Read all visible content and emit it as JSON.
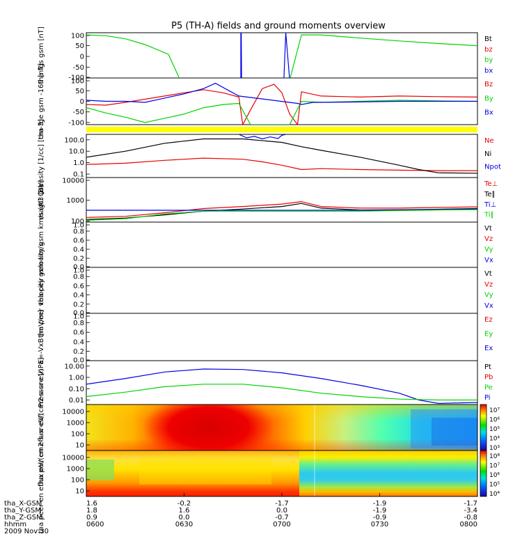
{
  "title": "P5 (TH-A) fields and ground moments overview",
  "colors": {
    "black": "#000000",
    "red": "#e60000",
    "green": "#00d200",
    "blue": "#0000e6",
    "yellow": "#ffff00"
  },
  "chart_data": [
    {
      "type": "line",
      "panel": "fgs",
      "ylabel": "tha fgs gsm [nT]",
      "yticks": [
        "100",
        "50",
        "0",
        "-50",
        "-100"
      ],
      "ylim": [
        -100,
        110
      ],
      "legend": [
        {
          "label": "Bt",
          "color": "#000000"
        },
        {
          "label": "bz",
          "color": "#e60000"
        },
        {
          "label": "by",
          "color": "#00d200"
        },
        {
          "label": "bx",
          "color": "#0000e6"
        }
      ],
      "series": [
        {
          "name": "by",
          "color": "#00d200",
          "x": [
            0.0,
            0.05,
            0.1,
            0.15,
            0.21,
            0.24,
            0.42,
            0.5,
            0.52,
            0.55,
            0.6,
            0.7,
            0.8,
            0.9,
            1.0
          ],
          "y": [
            100,
            96,
            82,
            55,
            10,
            -110,
            -110,
            -110,
            -110,
            100,
            100,
            85,
            72,
            60,
            50
          ]
        },
        {
          "name": "bx",
          "color": "#0000e6",
          "x": [
            0.395,
            0.395,
            0.396,
            0.397,
            0.505,
            0.51,
            0.52
          ],
          "y": [
            -110,
            110,
            110,
            -110,
            -110,
            110,
            -110
          ]
        }
      ]
    },
    {
      "type": "line",
      "panel": "fge",
      "ylabel": "tha fge gsm -169 [nT]",
      "yticks": [
        "100",
        "50",
        "0",
        "-50",
        "-100"
      ],
      "ylim": [
        -110,
        110
      ],
      "legend": [
        {
          "label": "Bz",
          "color": "#e60000"
        },
        {
          "label": "By",
          "color": "#00d200"
        },
        {
          "label": "Bx",
          "color": "#0000e6"
        }
      ],
      "series": [
        {
          "name": "Bz",
          "color": "#e60000",
          "x": [
            0.0,
            0.05,
            0.1,
            0.15,
            0.2,
            0.25,
            0.3,
            0.35,
            0.39,
            0.4,
            0.42,
            0.45,
            0.48,
            0.5,
            0.52,
            0.54,
            0.55,
            0.6,
            0.7,
            0.8,
            0.9,
            1.0
          ],
          "y": [
            -15,
            -18,
            -5,
            10,
            25,
            40,
            55,
            40,
            20,
            -110,
            -40,
            60,
            80,
            40,
            -60,
            -110,
            45,
            25,
            20,
            25,
            22,
            20
          ]
        },
        {
          "name": "By",
          "color": "#00d200",
          "x": [
            0.0,
            0.05,
            0.1,
            0.15,
            0.2,
            0.25,
            0.3,
            0.35,
            0.39,
            0.42,
            0.45,
            0.52,
            0.55,
            0.6,
            0.7,
            0.8,
            0.9,
            1.0
          ],
          "y": [
            -30,
            -55,
            -75,
            -100,
            -80,
            -60,
            -30,
            -15,
            -10,
            -110,
            -110,
            -110,
            0,
            -5,
            0,
            5,
            2,
            0
          ]
        },
        {
          "name": "Bx",
          "color": "#0000e6",
          "x": [
            0.0,
            0.05,
            0.1,
            0.15,
            0.2,
            0.25,
            0.3,
            0.33,
            0.36,
            0.39,
            0.54,
            0.55,
            0.58,
            0.6,
            0.7,
            0.8,
            0.9,
            1.0
          ],
          "y": [
            5,
            0,
            0,
            -5,
            15,
            35,
            60,
            85,
            55,
            25,
            -10,
            -15,
            -5,
            -5,
            -3,
            0,
            0,
            0
          ]
        }
      ]
    },
    {
      "type": "line",
      "panel": "density",
      "ylabel": "Density [1/cc] [cm-3]",
      "yscale": "log",
      "yticks": [
        "100.0",
        "10.0",
        "1.0",
        "0.1"
      ],
      "ylim": [
        0.05,
        300
      ],
      "legend": [
        {
          "label": "Ne",
          "color": "#e60000"
        },
        {
          "label": "Ni",
          "color": "#000000"
        },
        {
          "label": "Npot",
          "color": "#0000e6"
        }
      ],
      "series": [
        {
          "name": "Ne",
          "color": "#e60000",
          "x": [
            0.0,
            0.1,
            0.2,
            0.3,
            0.4,
            0.45,
            0.5,
            0.55,
            0.6,
            0.7,
            0.8,
            0.9,
            1.0
          ],
          "y": [
            0.7,
            0.9,
            1.6,
            2.5,
            2.0,
            1.2,
            0.6,
            0.25,
            0.3,
            0.25,
            0.22,
            0.2,
            0.2
          ]
        },
        {
          "name": "Ni",
          "color": "#000000",
          "x": [
            0.0,
            0.1,
            0.2,
            0.3,
            0.4,
            0.5,
            0.55,
            0.6,
            0.7,
            0.8,
            0.85,
            0.9,
            1.0
          ],
          "y": [
            3,
            10,
            50,
            120,
            120,
            60,
            25,
            12,
            3,
            0.6,
            0.25,
            0.13,
            0.12
          ]
        },
        {
          "name": "Npot",
          "color": "#0000e6",
          "x": [
            0.39,
            0.41,
            0.43,
            0.45,
            0.47,
            0.49,
            0.5,
            0.51
          ],
          "y": [
            300,
            150,
            200,
            120,
            180,
            130,
            250,
            300
          ]
        }
      ]
    },
    {
      "type": "line",
      "panel": "temperature",
      "ylabel": "magt3 [eV]",
      "yscale": "log",
      "yticks": [
        "10000",
        "1000",
        "100"
      ],
      "ylim": [
        90,
        12000
      ],
      "legend": [
        {
          "label": "Te⊥",
          "color": "#e60000"
        },
        {
          "label": "Te∥",
          "color": "#000000"
        },
        {
          "label": "Ti⊥",
          "color": "#0000e6"
        },
        {
          "label": "Ti∥",
          "color": "#00d200"
        }
      ],
      "series": [
        {
          "name": "Te⊥",
          "color": "#e60000",
          "x": [
            0.0,
            0.1,
            0.2,
            0.3,
            0.4,
            0.5,
            0.55,
            0.6,
            0.7,
            0.8,
            0.9,
            1.0
          ],
          "y": [
            150,
            170,
            250,
            400,
            500,
            650,
            850,
            500,
            420,
            420,
            450,
            480
          ]
        },
        {
          "name": "Te∥",
          "color": "#000000",
          "x": [
            0.0,
            0.1,
            0.2,
            0.3,
            0.4,
            0.5,
            0.55,
            0.6,
            0.7,
            0.8,
            0.9,
            1.0
          ],
          "y": [
            120,
            140,
            200,
            300,
            380,
            500,
            700,
            420,
            340,
            350,
            370,
            400
          ]
        },
        {
          "name": "Ti⊥",
          "color": "#0000e6",
          "x": [
            0.0,
            0.1,
            0.2,
            0.3,
            0.4,
            0.5,
            0.6,
            0.7,
            0.8,
            0.9,
            1.0
          ],
          "y": [
            330,
            330,
            330,
            330,
            330,
            330,
            330,
            330,
            340,
            360,
            380
          ]
        },
        {
          "name": "Ti∥",
          "color": "#00d200",
          "x": [
            0.0,
            0.1,
            0.2,
            0.3,
            0.4,
            0.5,
            0.6,
            0.7,
            0.8,
            0.9,
            1.0
          ],
          "y": [
            110,
            130,
            220,
            300,
            300,
            300,
            300,
            300,
            320,
            340,
            350
          ]
        }
      ]
    },
    {
      "type": "line",
      "panel": "vel_i",
      "ylabel": "tha peir velocity gsm km/s (All Qs)",
      "yticks": [
        "1.0",
        "0.8",
        "0.6",
        "0.4",
        "0.2",
        "0.0"
      ],
      "ylim": [
        0,
        1
      ],
      "legend": [
        {
          "label": "Vt",
          "color": "#000000"
        },
        {
          "label": "Vz",
          "color": "#e60000"
        },
        {
          "label": "Vy",
          "color": "#00d200"
        },
        {
          "label": "Vx",
          "color": "#0000e6"
        }
      ],
      "series": []
    },
    {
      "type": "line",
      "panel": "vel_e",
      "ylabel": "tha peer velocity gsm km/s",
      "yticks": [
        "1.0",
        "0.8",
        "0.6",
        "0.4",
        "0.2",
        "0.0"
      ],
      "ylim": [
        0,
        1
      ],
      "legend": [
        {
          "label": "Vt",
          "color": "#000000"
        },
        {
          "label": "Vz",
          "color": "#e60000"
        },
        {
          "label": "Vy",
          "color": "#00d200"
        },
        {
          "label": "Vx",
          "color": "#0000e6"
        }
      ],
      "series": []
    },
    {
      "type": "line",
      "panel": "efield",
      "ylabel": "E=-VxB [mV/m]",
      "yticks": [
        "1.0",
        "0.8",
        "0.6",
        "0.4",
        "0.2",
        "0.0"
      ],
      "ylim": [
        0,
        1
      ],
      "legend": [
        {
          "label": "Ez",
          "color": "#e60000"
        },
        {
          "label": "Ey",
          "color": "#00d200"
        },
        {
          "label": "Ex",
          "color": "#0000e6"
        }
      ],
      "series": []
    },
    {
      "type": "line",
      "panel": "pressure",
      "ylabel": "Pressure [nPa]",
      "yscale": "log",
      "yticks": [
        "10.00",
        "1.00",
        "0.10",
        "0.01"
      ],
      "ylim": [
        0.004,
        30
      ],
      "legend": [
        {
          "label": "Pt",
          "color": "#000000"
        },
        {
          "label": "Pb",
          "color": "#e60000"
        },
        {
          "label": "Pe",
          "color": "#00d200"
        },
        {
          "label": "Pi",
          "color": "#0000e6"
        }
      ],
      "series": [
        {
          "name": "Pi",
          "color": "#0000e6",
          "x": [
            0.0,
            0.1,
            0.2,
            0.3,
            0.4,
            0.5,
            0.6,
            0.7,
            0.8,
            0.85,
            0.9,
            1.0
          ],
          "y": [
            0.25,
            0.8,
            3.0,
            5.5,
            5.0,
            2.5,
            0.8,
            0.2,
            0.04,
            0.01,
            0.005,
            0.006
          ]
        },
        {
          "name": "Pe",
          "color": "#00d200",
          "x": [
            0.0,
            0.1,
            0.2,
            0.3,
            0.4,
            0.5,
            0.6,
            0.7,
            0.8,
            0.9,
            1.0
          ],
          "y": [
            0.02,
            0.05,
            0.15,
            0.25,
            0.25,
            0.12,
            0.04,
            0.02,
            0.012,
            0.01,
            0.01
          ]
        }
      ]
    },
    {
      "type": "heatmap",
      "panel": "ion_spec",
      "ylabel": "tha peir en eflux eV/(cm2-s-sr-eV)",
      "yscale": "log",
      "yticks": [
        "10000",
        "1000",
        "100",
        "10"
      ],
      "colorbar_ticks": [
        "10⁷",
        "10⁶",
        "10⁵",
        "10⁴",
        "10³"
      ]
    },
    {
      "type": "heatmap",
      "panel": "elec_spec",
      "ylabel": "tha peer en eflux eV/(cm2-s-sr-eV)",
      "yscale": "log",
      "yticks": [
        "10000",
        "1000",
        "100",
        "10"
      ],
      "colorbar_ticks": [
        "10⁸",
        "10⁷",
        "10⁶",
        "10⁵",
        "10⁴"
      ]
    }
  ],
  "xaxis": {
    "rows": [
      {
        "label": "tha_X-GSM",
        "values": [
          "1.6",
          "-0.2",
          "-1.7",
          "-1.9",
          "-1.7"
        ]
      },
      {
        "label": "tha_Y-GSM",
        "values": [
          "1.8",
          "1.6",
          "0.0",
          "-1.9",
          "-3.4"
        ]
      },
      {
        "label": "tha_Z-GSM",
        "values": [
          "0.9",
          "0.0",
          "-0.7",
          "-0.9",
          "-0.8"
        ]
      },
      {
        "label": "hhmm",
        "values": [
          "0600",
          "0630",
          "0700",
          "0730",
          "0800"
        ]
      }
    ],
    "date": "2009 Nov 30"
  }
}
